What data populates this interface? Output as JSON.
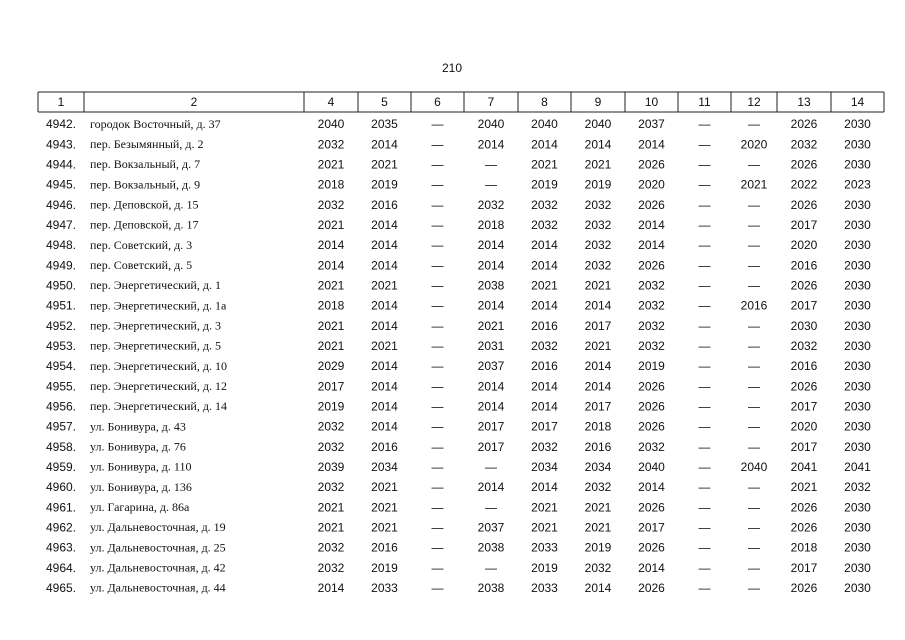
{
  "page_number": "210",
  "table": {
    "header": [
      "1",
      "2",
      "4",
      "5",
      "6",
      "7",
      "8",
      "9",
      "10",
      "11",
      "12",
      "13",
      "14"
    ],
    "rows": [
      [
        "4942.",
        "городок Восточный, д. 37",
        "2040",
        "2035",
        "—",
        "2040",
        "2040",
        "2040",
        "2037",
        "—",
        "—",
        "2026",
        "2030"
      ],
      [
        "4943.",
        "пер. Безымянный, д. 2",
        "2032",
        "2014",
        "—",
        "2014",
        "2014",
        "2014",
        "2014",
        "—",
        "2020",
        "2032",
        "2030"
      ],
      [
        "4944.",
        "пер. Вокзальный, д. 7",
        "2021",
        "2021",
        "—",
        "—",
        "2021",
        "2021",
        "2026",
        "—",
        "—",
        "2026",
        "2030"
      ],
      [
        "4945.",
        "пер. Вокзальный, д. 9",
        "2018",
        "2019",
        "—",
        "—",
        "2019",
        "2019",
        "2020",
        "—",
        "2021",
        "2022",
        "2023"
      ],
      [
        "4946.",
        "пер. Деповской, д. 15",
        "2032",
        "2016",
        "—",
        "2032",
        "2032",
        "2032",
        "2026",
        "—",
        "—",
        "2026",
        "2030"
      ],
      [
        "4947.",
        "пер. Деповской, д. 17",
        "2021",
        "2014",
        "—",
        "2018",
        "2032",
        "2032",
        "2014",
        "—",
        "—",
        "2017",
        "2030"
      ],
      [
        "4948.",
        "пер. Советский, д. 3",
        "2014",
        "2014",
        "—",
        "2014",
        "2014",
        "2032",
        "2014",
        "—",
        "—",
        "2020",
        "2030"
      ],
      [
        "4949.",
        "пер. Советский, д. 5",
        "2014",
        "2014",
        "—",
        "2014",
        "2014",
        "2032",
        "2026",
        "—",
        "—",
        "2016",
        "2030"
      ],
      [
        "4950.",
        "пер. Энергетический, д. 1",
        "2021",
        "2021",
        "—",
        "2038",
        "2021",
        "2021",
        "2032",
        "—",
        "—",
        "2026",
        "2030"
      ],
      [
        "4951.",
        "пер. Энергетический, д. 1а",
        "2018",
        "2014",
        "—",
        "2014",
        "2014",
        "2014",
        "2032",
        "—",
        "2016",
        "2017",
        "2030"
      ],
      [
        "4952.",
        "пер. Энергетический, д. 3",
        "2021",
        "2014",
        "—",
        "2021",
        "2016",
        "2017",
        "2032",
        "—",
        "—",
        "2030",
        "2030"
      ],
      [
        "4953.",
        "пер. Энергетический, д. 5",
        "2021",
        "2021",
        "—",
        "2031",
        "2032",
        "2021",
        "2032",
        "—",
        "—",
        "2032",
        "2030"
      ],
      [
        "4954.",
        "пер. Энергетический, д. 10",
        "2029",
        "2014",
        "—",
        "2037",
        "2016",
        "2014",
        "2019",
        "—",
        "—",
        "2016",
        "2030"
      ],
      [
        "4955.",
        "пер. Энергетический, д. 12",
        "2017",
        "2014",
        "—",
        "2014",
        "2014",
        "2014",
        "2026",
        "—",
        "—",
        "2026",
        "2030"
      ],
      [
        "4956.",
        "пер. Энергетический, д. 14",
        "2019",
        "2014",
        "—",
        "2014",
        "2014",
        "2017",
        "2026",
        "—",
        "—",
        "2017",
        "2030"
      ],
      [
        "4957.",
        "ул. Бонивура, д. 43",
        "2032",
        "2014",
        "—",
        "2017",
        "2017",
        "2018",
        "2026",
        "—",
        "—",
        "2020",
        "2030"
      ],
      [
        "4958.",
        "ул. Бонивура, д. 76",
        "2032",
        "2016",
        "—",
        "2017",
        "2032",
        "2016",
        "2032",
        "—",
        "—",
        "2017",
        "2030"
      ],
      [
        "4959.",
        "ул. Бонивура, д. 110",
        "2039",
        "2034",
        "—",
        "—",
        "2034",
        "2034",
        "2040",
        "—",
        "2040",
        "2041",
        "2041"
      ],
      [
        "4960.",
        "ул. Бонивура, д. 136",
        "2032",
        "2021",
        "—",
        "2014",
        "2014",
        "2032",
        "2014",
        "—",
        "—",
        "2021",
        "2032"
      ],
      [
        "4961.",
        "ул. Гагарина, д. 86а",
        "2021",
        "2021",
        "—",
        "—",
        "2021",
        "2021",
        "2026",
        "—",
        "—",
        "2026",
        "2030"
      ],
      [
        "4962.",
        "ул. Дальневосточная, д. 19",
        "2021",
        "2021",
        "—",
        "2037",
        "2021",
        "2021",
        "2017",
        "—",
        "—",
        "2026",
        "2030"
      ],
      [
        "4963.",
        "ул. Дальневосточная, д. 25",
        "2032",
        "2016",
        "—",
        "2038",
        "2033",
        "2019",
        "2026",
        "—",
        "—",
        "2018",
        "2030"
      ],
      [
        "4964.",
        "ул. Дальневосточная, д. 42",
        "2032",
        "2019",
        "—",
        "—",
        "2019",
        "2032",
        "2014",
        "—",
        "—",
        "2017",
        "2030"
      ],
      [
        "4965.",
        "ул. Дальневосточная, д. 44",
        "2014",
        "2033",
        "—",
        "2038",
        "2033",
        "2014",
        "2026",
        "—",
        "—",
        "2026",
        "2030"
      ]
    ]
  }
}
